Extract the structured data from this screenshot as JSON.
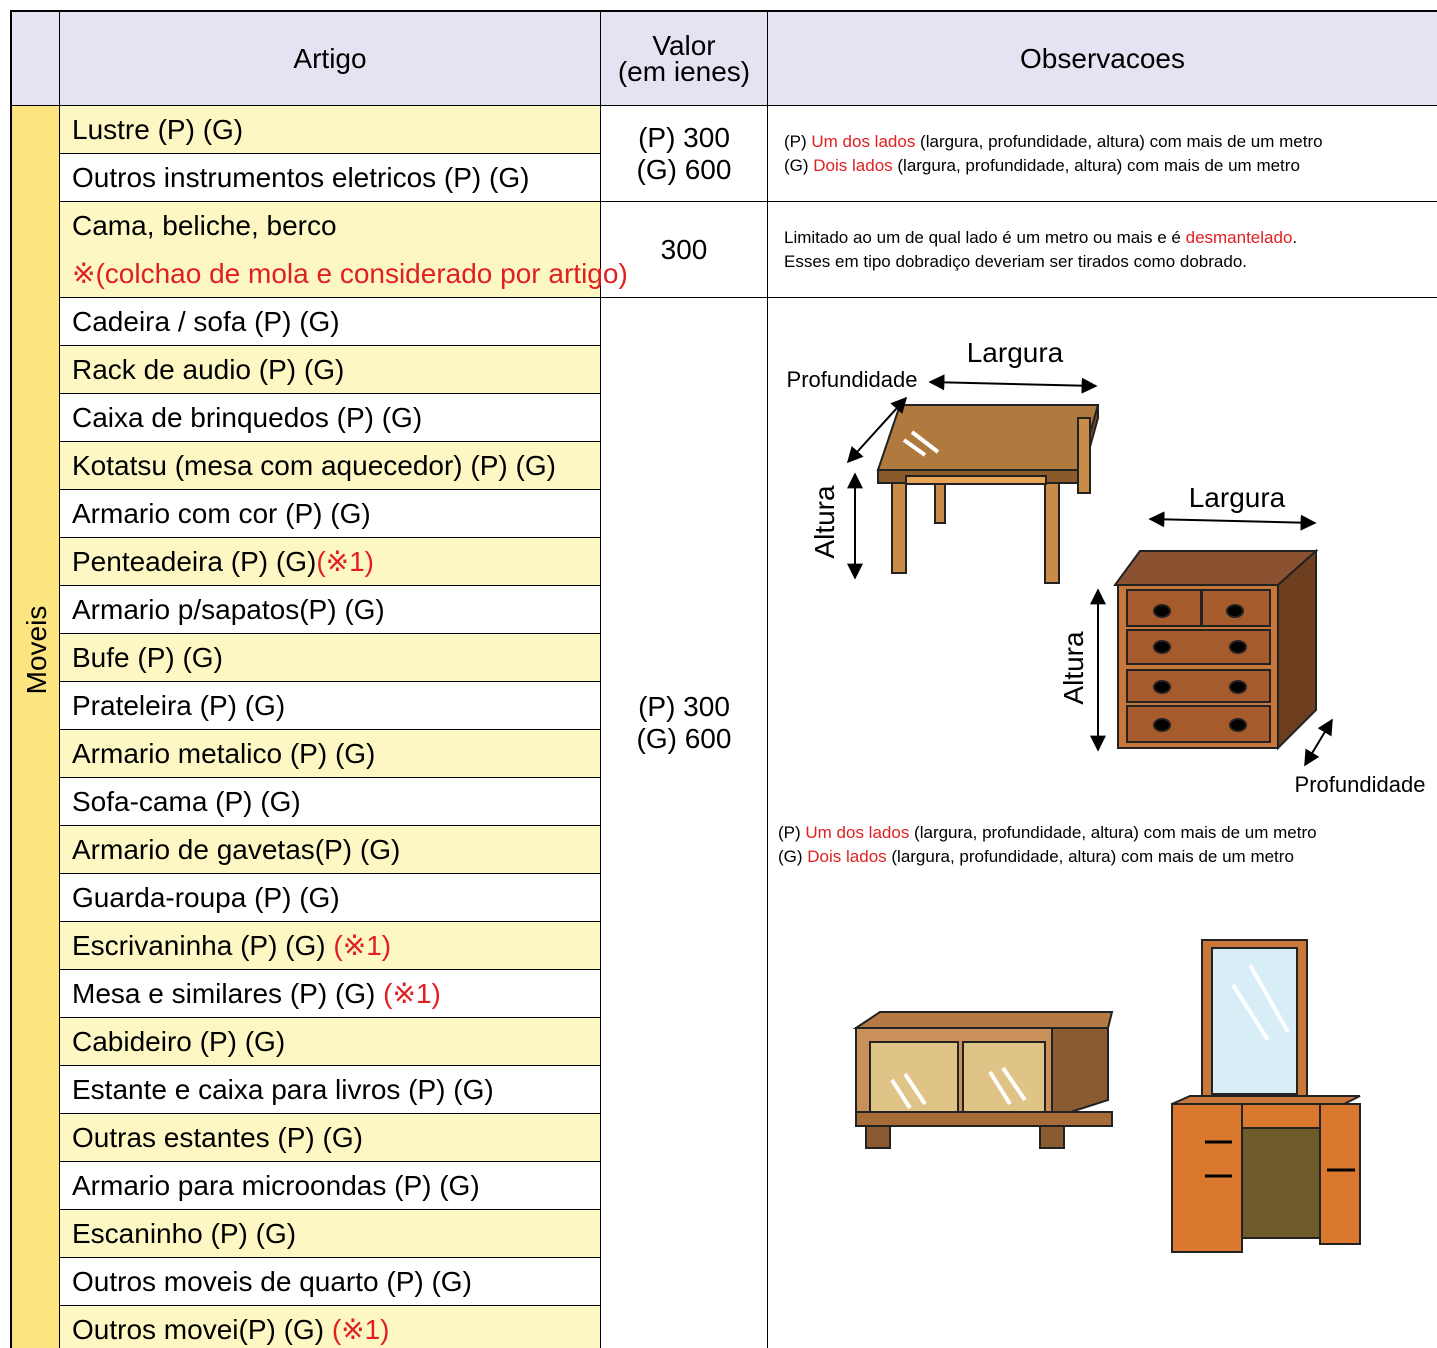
{
  "header": {
    "artigo": "Artigo",
    "valor": [
      "Valor",
      "(em ienes)"
    ],
    "observacoes": "Observacoes"
  },
  "category": "Moveis",
  "groups": [
    {
      "items": [
        [
          [
            {
              "text": "Lustre (P) (G)"
            }
          ]
        ],
        [
          [
            {
              "text": "Outros instrumentos eletricos (P) (G)"
            }
          ]
        ]
      ],
      "value": [
        "(P) 300",
        "(G) 600"
      ],
      "notes": [
        [
          {
            "text": "(P) "
          },
          {
            "text": "Um dos lados",
            "color": "#e02020"
          },
          {
            "text": " (largura, profundidade, altura) com mais de um metro"
          }
        ],
        [
          {
            "text": "(G) "
          },
          {
            "text": "Dois lados",
            "color": "#e02020"
          },
          {
            "text": " (largura, profundidade, altura) com mais de um metro"
          }
        ]
      ]
    },
    {
      "items": [
        [
          [
            {
              "text": "Cama, beliche, berco"
            }
          ],
          [
            {
              "text": "※(colchao de mola e considerado por artigo)",
              "color": "#e02020"
            }
          ]
        ]
      ],
      "value": [
        "300"
      ],
      "notes": [
        [
          {
            "text": "Limitado ao um de qual lado é um metro ou mais e é "
          },
          {
            "text": "desmantelado",
            "color": "#e02020"
          },
          {
            "text": "."
          }
        ],
        [
          {
            "text": "Esses em tipo dobradiço deveriam ser tirados como dobrado."
          }
        ]
      ]
    },
    {
      "items": [
        [
          [
            {
              "text": "Cadeira / sofa (P) (G)"
            }
          ]
        ],
        [
          [
            {
              "text": "Rack de audio (P) (G)"
            }
          ]
        ],
        [
          [
            {
              "text": "Caixa de brinquedos (P) (G)"
            }
          ]
        ],
        [
          [
            {
              "text": "Kotatsu (mesa com aquecedor)  (P) (G)"
            }
          ]
        ],
        [
          [
            {
              "text": "Armario com cor (P) (G)"
            }
          ]
        ],
        [
          [
            {
              "text": "Penteadeira (P) (G)"
            },
            {
              "text": "(※1)",
              "color": "#e02020"
            }
          ]
        ],
        [
          [
            {
              "text": "Armario p/sapatos(P) (G)"
            }
          ]
        ],
        [
          [
            {
              "text": "Bufe (P) (G)"
            }
          ]
        ],
        [
          [
            {
              "text": "Prateleira (P) (G)"
            }
          ]
        ],
        [
          [
            {
              "text": "Armario metalico (P) (G)"
            }
          ]
        ],
        [
          [
            {
              "text": "Sofa-cama (P) (G)"
            }
          ]
        ],
        [
          [
            {
              "text": "Armario de gavetas(P) (G)"
            }
          ]
        ],
        [
          [
            {
              "text": "Guarda-roupa (P) (G)"
            }
          ]
        ],
        [
          [
            {
              "text": "Escrivaninha (P) (G) "
            },
            {
              "text": "(※1)",
              "color": "#e02020"
            }
          ]
        ],
        [
          [
            {
              "text": "Mesa e similares (P) (G) "
            },
            {
              "text": "(※1)",
              "color": "#e02020"
            }
          ]
        ],
        [
          [
            {
              "text": "Cabideiro (P) (G)"
            }
          ]
        ],
        [
          [
            {
              "text": "Estante e caixa para livros (P) (G)"
            }
          ]
        ],
        [
          [
            {
              "text": "Outras estantes (P) (G)"
            }
          ]
        ],
        [
          [
            {
              "text": "Armario para microondas (P) (G)"
            }
          ]
        ],
        [
          [
            {
              "text": "Escaninho (P) (G)"
            }
          ]
        ],
        [
          [
            {
              "text": "Outros moveis de quarto (P) (G)"
            }
          ]
        ],
        [
          [
            {
              "text": "Outros movei(P) (G) "
            },
            {
              "text": "(※1)",
              "color": "#e02020"
            }
          ]
        ]
      ],
      "value": [
        "(P) 300",
        "(G) 600"
      ],
      "notes": [
        [
          {
            "text": "(P) "
          },
          {
            "text": "Um dos lados",
            "color": "#e02020"
          },
          {
            "text": " (largura, profundidade, altura) com mais de um metro"
          }
        ],
        [
          {
            "text": "(G) "
          },
          {
            "text": "Dois lados",
            "color": "#e02020"
          },
          {
            "text": " (largura, profundidade, altura) com mais de um metro"
          }
        ]
      ]
    }
  ],
  "diagram": {
    "table": {
      "width": "Largura",
      "depth": "Profundidade",
      "height": "Altura"
    },
    "chest": {
      "width": "Largura",
      "height": "Altura",
      "depth": "Profundidade"
    }
  }
}
